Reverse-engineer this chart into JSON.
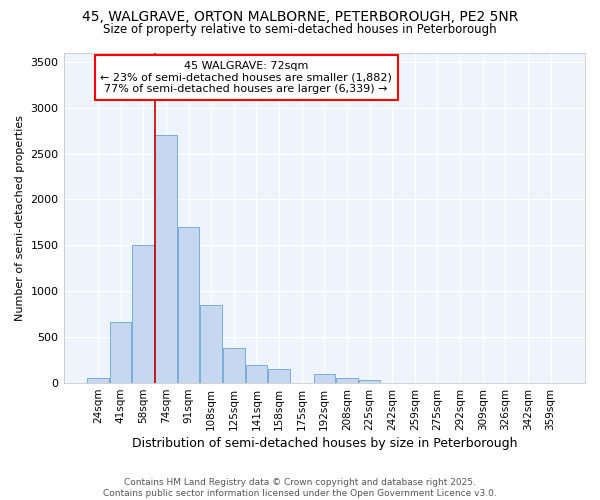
{
  "title_line1": "45, WALGRAVE, ORTON MALBORNE, PETERBOROUGH, PE2 5NR",
  "title_line2": "Size of property relative to semi-detached houses in Peterborough",
  "xlabel": "Distribution of semi-detached houses by size in Peterborough",
  "ylabel": "Number of semi-detached properties",
  "footer_line1": "Contains HM Land Registry data © Crown copyright and database right 2025.",
  "footer_line2": "Contains public sector information licensed under the Open Government Licence v3.0.",
  "categories": [
    "24sqm",
    "41sqm",
    "58sqm",
    "74sqm",
    "91sqm",
    "108sqm",
    "125sqm",
    "141sqm",
    "158sqm",
    "175sqm",
    "192sqm",
    "208sqm",
    "225sqm",
    "242sqm",
    "259sqm",
    "275sqm",
    "292sqm",
    "309sqm",
    "326sqm",
    "342sqm",
    "359sqm"
  ],
  "values": [
    50,
    670,
    1500,
    2700,
    1700,
    850,
    380,
    200,
    155,
    0,
    100,
    60,
    30,
    0,
    0,
    0,
    0,
    0,
    0,
    0,
    0
  ],
  "bar_color": "#c5d8f0",
  "bar_edge_color": "#7aadda",
  "plot_bg_color": "#eef4fb",
  "vline_color": "#cc0000",
  "vline_x": 3.0,
  "annotation_text": "45 WALGRAVE: 72sqm\n← 23% of semi-detached houses are smaller (1,882)\n77% of semi-detached houses are larger (6,339) →",
  "ylim_max": 3600,
  "yticks": [
    0,
    500,
    1000,
    1500,
    2000,
    2500,
    3000,
    3500
  ]
}
